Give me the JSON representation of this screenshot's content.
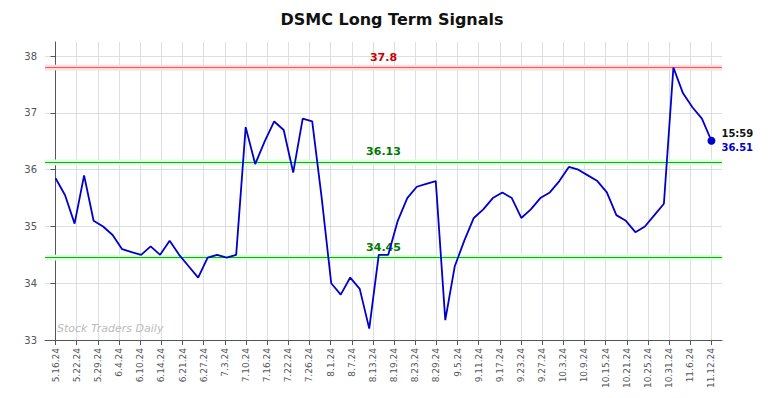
{
  "chart_data": {
    "type": "line",
    "title": "DSMC Long Term Signals",
    "x": [
      0,
      0.4493,
      0.8986,
      1.3478,
      1.7971,
      2.2464,
      2.6957,
      3.1449,
      3.5942,
      4.0435,
      4.4928,
      4.942,
      5.3913,
      5.8406,
      6.2899,
      6.7391,
      7.1884,
      7.6377,
      8.087,
      8.5362,
      8.9855,
      9.4348,
      9.8841,
      10.3333,
      10.7826,
      11.2319,
      11.6812,
      12.1304,
      12.5797,
      13.029,
      13.4783,
      13.9275,
      14.3768,
      14.8261,
      15.2754,
      15.7246,
      16.1739,
      16.6232,
      17.0725,
      17.5217,
      17.971,
      18.4203,
      18.8696,
      19.3188,
      19.7681,
      20.2174,
      20.6667,
      21.1159,
      21.5652,
      22.0145,
      22.4638,
      22.913,
      23.3623,
      23.8116,
      24.2609,
      24.7101,
      25.1594,
      25.6087,
      26.058,
      26.5072,
      26.9565,
      27.4058,
      27.8551,
      28.3043,
      28.7536,
      29.2029,
      29.6522,
      30.1014,
      30.5507,
      31
    ],
    "values": [
      35.85,
      35.55,
      35.05,
      35.9,
      35.1,
      35.0,
      34.85,
      34.6,
      34.55,
      34.5,
      34.65,
      34.5,
      34.75,
      34.5,
      34.3,
      34.1,
      34.45,
      34.5,
      34.45,
      34.5,
      36.75,
      36.1,
      36.5,
      36.85,
      36.7,
      35.95,
      36.9,
      36.85,
      35.5,
      34.0,
      33.8,
      34.1,
      33.9,
      33.2,
      34.5,
      34.5,
      35.1,
      35.5,
      35.7,
      35.75,
      35.8,
      33.35,
      34.3,
      34.75,
      35.15,
      35.3,
      35.5,
      35.6,
      35.5,
      35.15,
      35.3,
      35.5,
      35.6,
      35.8,
      36.05,
      36.0,
      35.9,
      35.8,
      35.6,
      35.2,
      35.1,
      34.9,
      35.0,
      35.2,
      35.4,
      37.8,
      37.35,
      37.1,
      36.9,
      36.51
    ],
    "color": "#0000cc",
    "xlim": [
      -0.5,
      31.5
    ],
    "xticks": [
      {
        "value": 0,
        "label": "5.16.24"
      },
      {
        "value": 1,
        "label": "5.22.24"
      },
      {
        "value": 2,
        "label": "5.29.24"
      },
      {
        "value": 3,
        "label": "6.4.24"
      },
      {
        "value": 4,
        "label": "6.10.24"
      },
      {
        "value": 5,
        "label": "6.14.24"
      },
      {
        "value": 6,
        "label": "6.21.24"
      },
      {
        "value": 7,
        "label": "6.27.24"
      },
      {
        "value": 8,
        "label": "7.3.24"
      },
      {
        "value": 9,
        "label": "7.10.24"
      },
      {
        "value": 10,
        "label": "7.16.24"
      },
      {
        "value": 11,
        "label": "7.22.24"
      },
      {
        "value": 12,
        "label": "7.26.24"
      },
      {
        "value": 13,
        "label": "8.1.24"
      },
      {
        "value": 14,
        "label": "8.7.24"
      },
      {
        "value": 15,
        "label": "8.13.24"
      },
      {
        "value": 16,
        "label": "8.19.24"
      },
      {
        "value": 17,
        "label": "8.23.24"
      },
      {
        "value": 18,
        "label": "8.29.24"
      },
      {
        "value": 19,
        "label": "9.5.24"
      },
      {
        "value": 20,
        "label": "9.11.24"
      },
      {
        "value": 21,
        "label": "9.17.24"
      },
      {
        "value": 22,
        "label": "9.23.24"
      },
      {
        "value": 23,
        "label": "9.27.24"
      },
      {
        "value": 24,
        "label": "10.3.24"
      },
      {
        "value": 25,
        "label": "10.9.24"
      },
      {
        "value": 26,
        "label": "10.15.24"
      },
      {
        "value": 27,
        "label": "10.21.24"
      },
      {
        "value": 28,
        "label": "10.25.24"
      },
      {
        "value": 29,
        "label": "10.31.24"
      },
      {
        "value": 30,
        "label": "11.6.24"
      },
      {
        "value": 31,
        "label": "11.12.24"
      }
    ],
    "ylim": [
      33.0,
      38.25
    ],
    "yticks": [
      33,
      34,
      35,
      36,
      37,
      38
    ],
    "grid": true,
    "levels": [
      {
        "value": 37.8,
        "color": "#ff5555",
        "band_color": "#ffdddd",
        "label_color": "#cc0000"
      },
      {
        "value": 36.13,
        "color": "#00bb00",
        "band_color": "#ddffdd",
        "label_color": "#007700"
      },
      {
        "value": 34.45,
        "color": "#00bb00",
        "band_color": "#ddffdd",
        "label_color": "#007700"
      }
    ],
    "end_label": {
      "time": "15:59",
      "price": 36.51,
      "time_color": "#111111",
      "price_color": "#0000cc"
    },
    "watermark": {
      "text": "Stock Traders Daily",
      "color": "#bbbbbb"
    }
  }
}
